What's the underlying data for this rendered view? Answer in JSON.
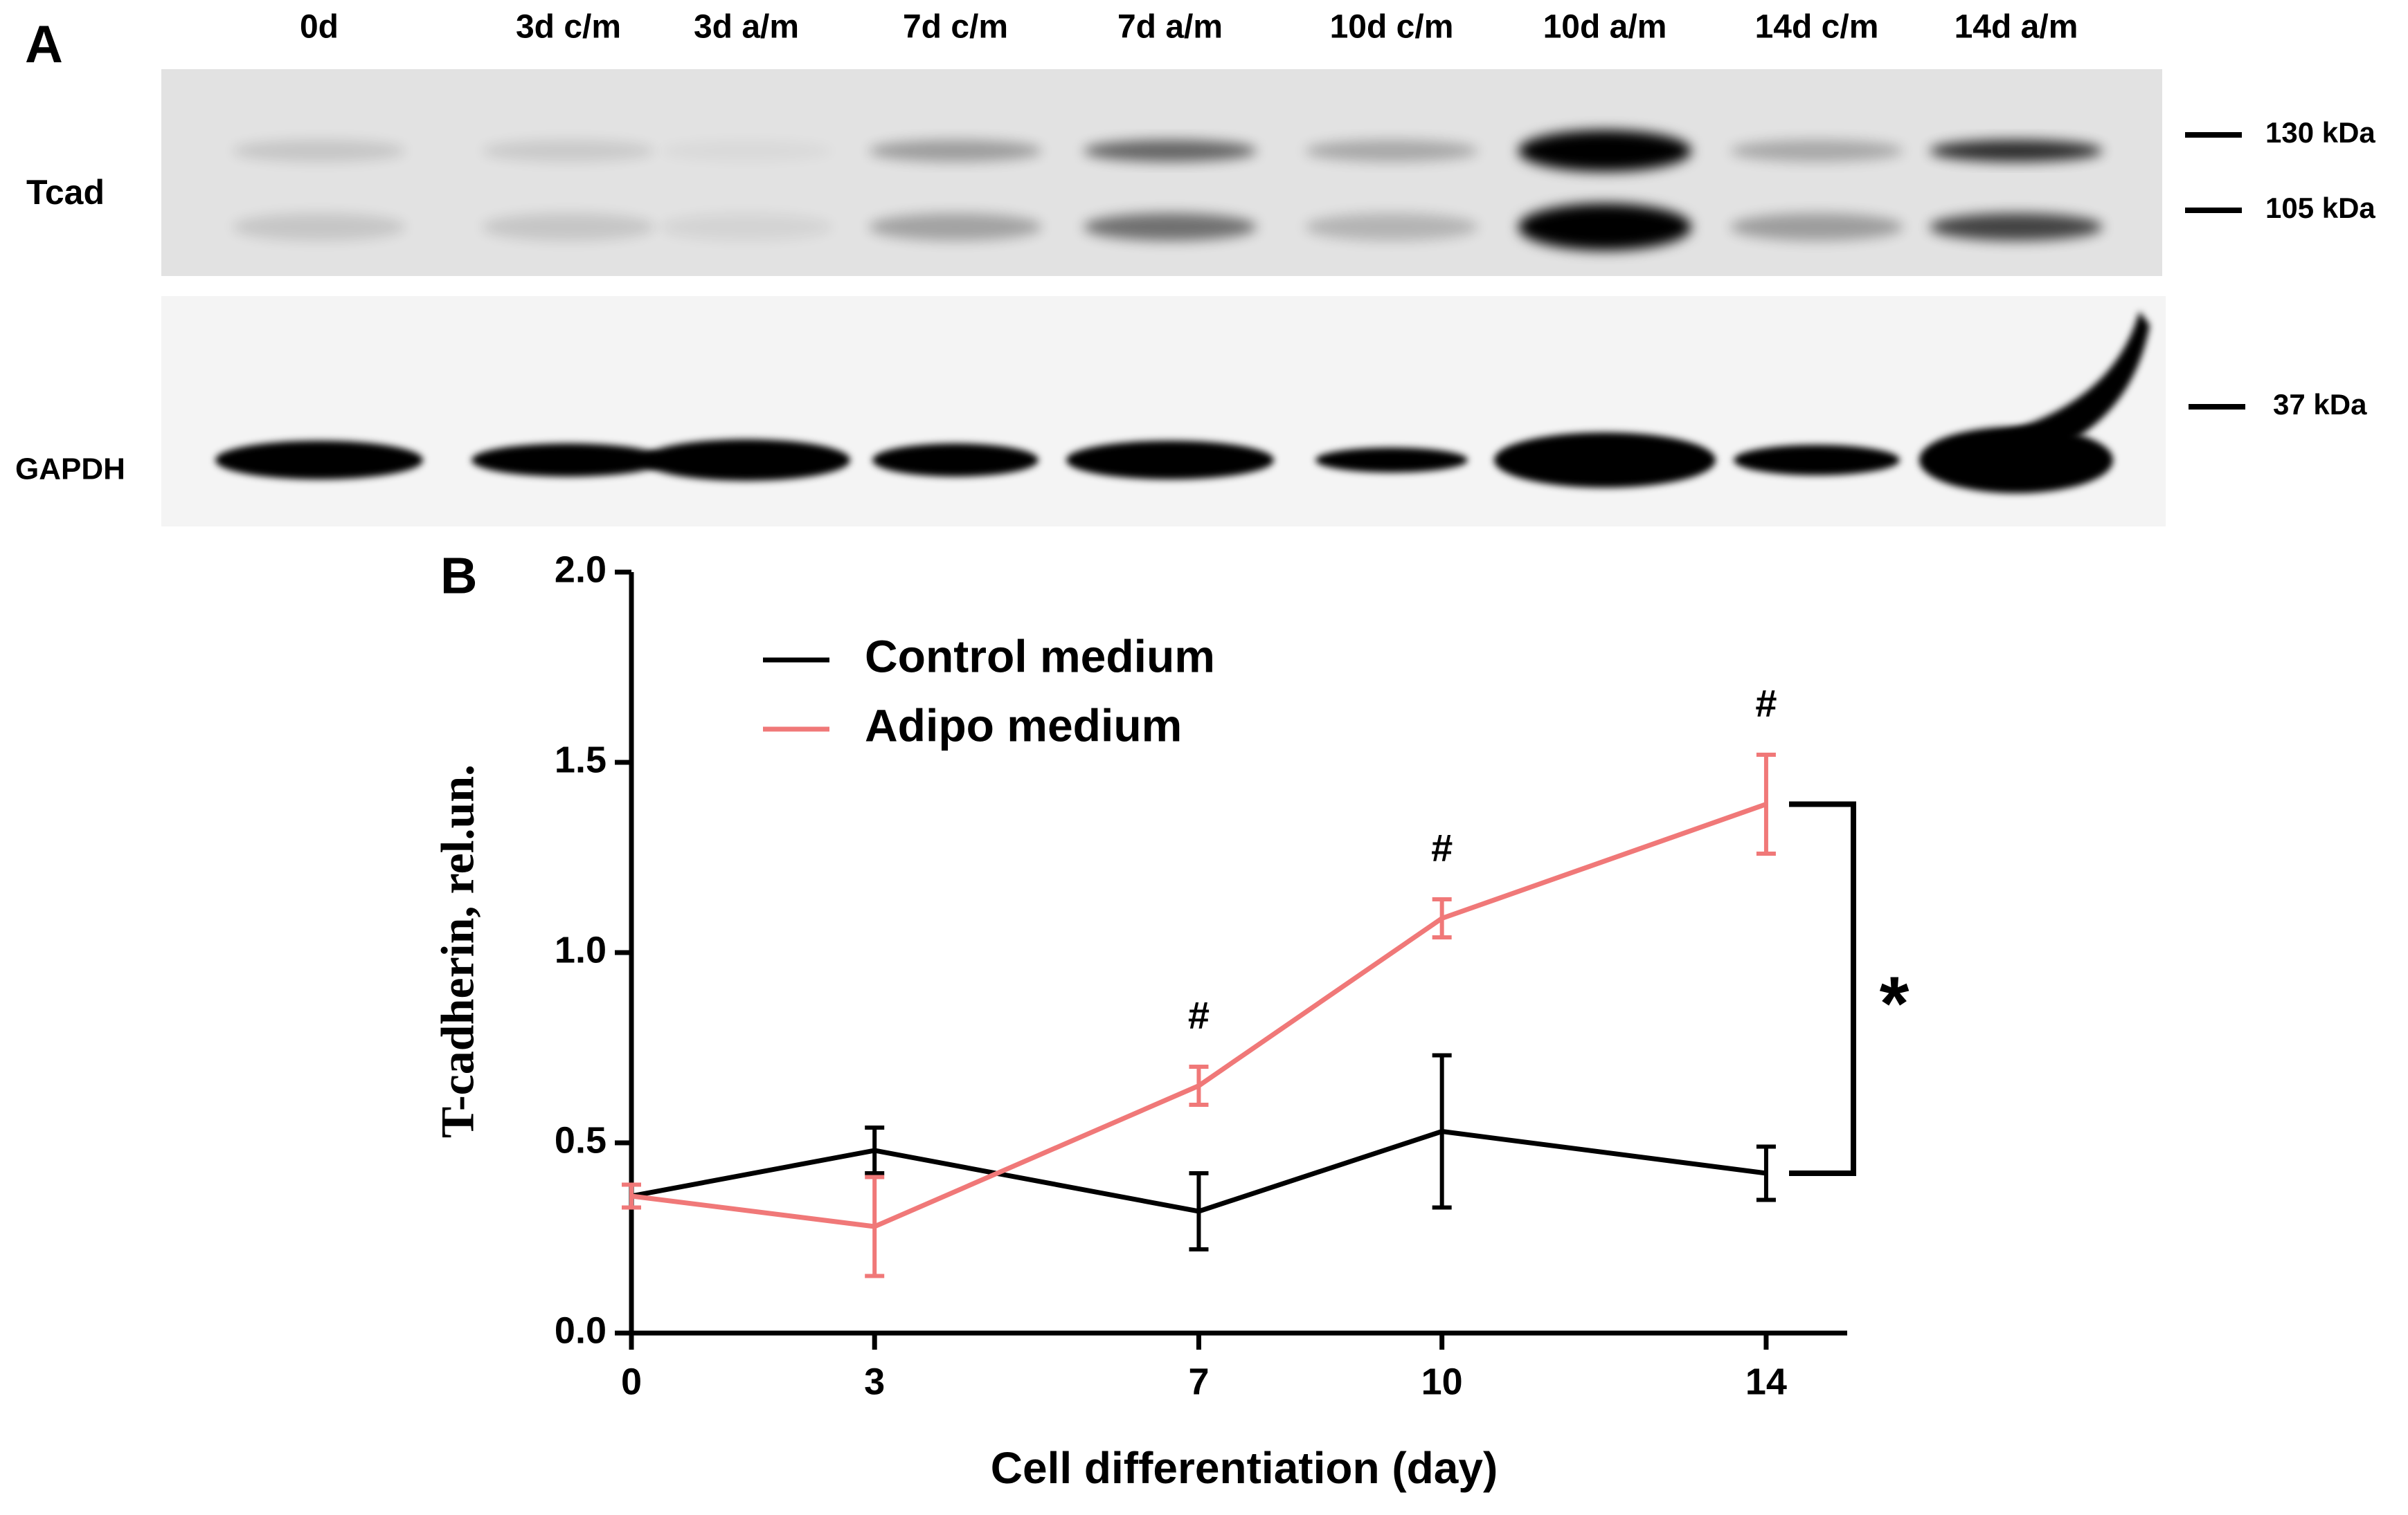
{
  "panel_a": {
    "label": "A",
    "lanes": [
      "0d",
      "3d c/m",
      "3d a/m",
      "7d c/m",
      "7d a/m",
      "10d c/m",
      "10d a/m",
      "14d c/m",
      "14d a/m"
    ],
    "rows": [
      "Tcad",
      "GAPDH"
    ],
    "markers": [
      "130 kDa",
      "105 kDa",
      "37 kDa"
    ]
  },
  "chart_data": {
    "type": "line",
    "panel_label": "B",
    "x_label": "Cell differentiation (day)",
    "y_label": "T-cadherin, rel.un.",
    "x": [
      0,
      3,
      7,
      10,
      14
    ],
    "xlim": [
      0,
      15
    ],
    "xticks": [
      0,
      3,
      7,
      10,
      14
    ],
    "ylim": [
      0,
      2
    ],
    "yticks": [
      {
        "value": 0,
        "label": "0.0"
      },
      {
        "value": 0.5,
        "label": "0.5"
      },
      {
        "value": 1,
        "label": "1.0"
      },
      {
        "value": 1.5,
        "label": "1.5"
      },
      {
        "value": 2,
        "label": "2.0"
      }
    ],
    "legend": "upper left",
    "series": [
      {
        "name": "Control medium",
        "color": "#000000",
        "values": [
          0.36,
          0.48,
          0.32,
          0.53,
          0.42
        ],
        "errors": [
          0.03,
          0.06,
          0.1,
          0.2,
          0.07
        ]
      },
      {
        "name": "Adipo medium",
        "color": "#f07878",
        "values": [
          0.36,
          0.28,
          0.65,
          1.09,
          1.39
        ],
        "errors": [
          0.03,
          0.13,
          0.05,
          0.05,
          0.13
        ]
      }
    ],
    "annotations": [
      {
        "text": "#",
        "x": 7
      },
      {
        "text": "#",
        "x": 10
      },
      {
        "text": "#",
        "x": 14
      }
    ],
    "bracket_label": "*"
  }
}
